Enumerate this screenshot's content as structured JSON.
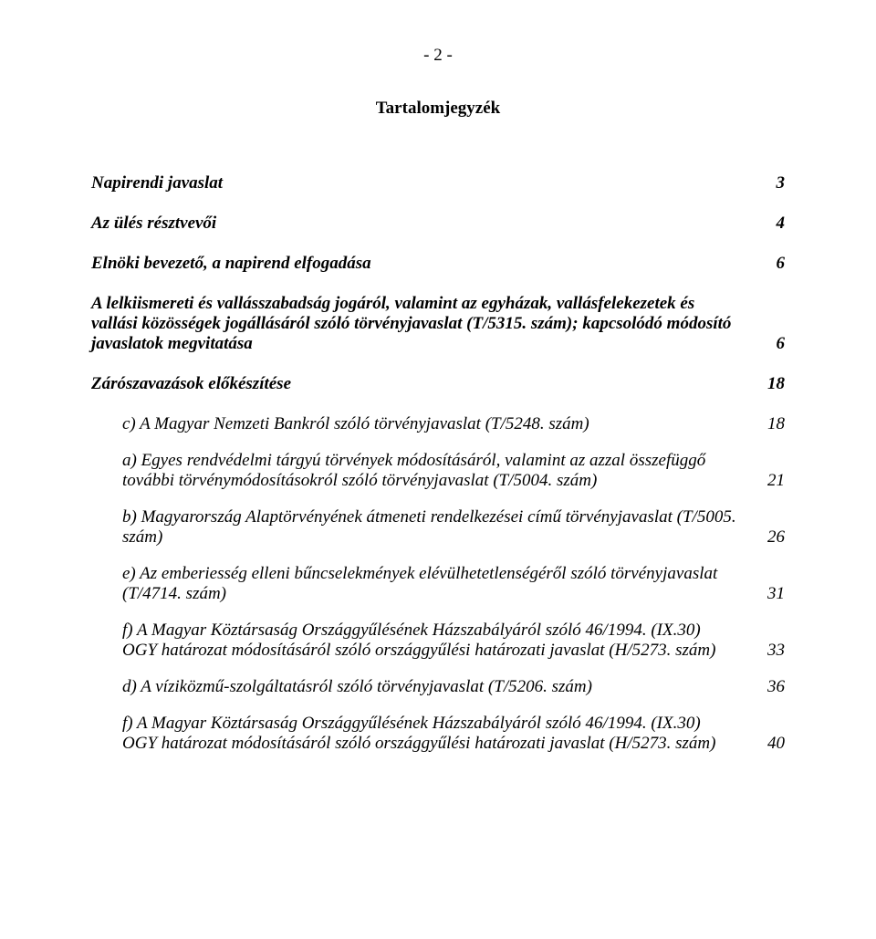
{
  "page_number": "- 2 -",
  "title": "Tartalomjegyzék",
  "entries": [
    {
      "label": "Napirendi javaslat",
      "page": "3",
      "level": 0
    },
    {
      "label": "Az ülés résztvevői",
      "page": "4",
      "level": 0
    },
    {
      "label": "Elnöki bevezető, a napirend elfogadása",
      "page": "6",
      "level": 0
    },
    {
      "label": "A lelkiismereti és vallásszabadság jogáról, valamint az egyházak, vallásfelekezetek és vallási közösségek jogállásáról szóló törvényjavaslat (T/5315. szám); kapcsolódó módosító javaslatok megvitatása",
      "page": "6",
      "level": 0
    },
    {
      "label": "Zárószavazások előkészítése",
      "page": "18",
      "level": 0
    },
    {
      "label": "c) A Magyar Nemzeti Bankról szóló törvényjavaslat (T/5248. szám)",
      "page": "18",
      "level": 1
    },
    {
      "label": "a) Egyes rendvédelmi tárgyú törvények módosításáról, valamint az azzal összefüggő további törvénymódosításokról szóló törvényjavaslat (T/5004. szám)",
      "page": "21",
      "level": 1
    },
    {
      "label": "b) Magyarország Alaptörvényének átmeneti rendelkezései című törvényjavaslat (T/5005. szám)",
      "page": "26",
      "level": 1
    },
    {
      "label": "e) Az emberiesség elleni bűncselekmények elévülhetetlenségéről szóló törvényjavaslat (T/4714. szám)",
      "page": "31",
      "level": 1
    },
    {
      "label": "f) A Magyar Köztársaság Országgyűlésének Házszabályáról szóló 46/1994. (IX.30) OGY határozat módosításáról szóló országgyűlési határozati javaslat (H/5273. szám)",
      "page": "33",
      "level": 1
    },
    {
      "label": "d) A víziközmű-szolgáltatásról szóló törvényjavaslat (T/5206. szám)",
      "page": "36",
      "level": 1
    },
    {
      "label": "f) A Magyar Köztársaság Országgyűlésének Házszabályáról szóló 46/1994. (IX.30) OGY határozat módosításáról szóló országgyűlési határozati javaslat (H/5273. szám)",
      "page": "40",
      "level": 1
    }
  ]
}
